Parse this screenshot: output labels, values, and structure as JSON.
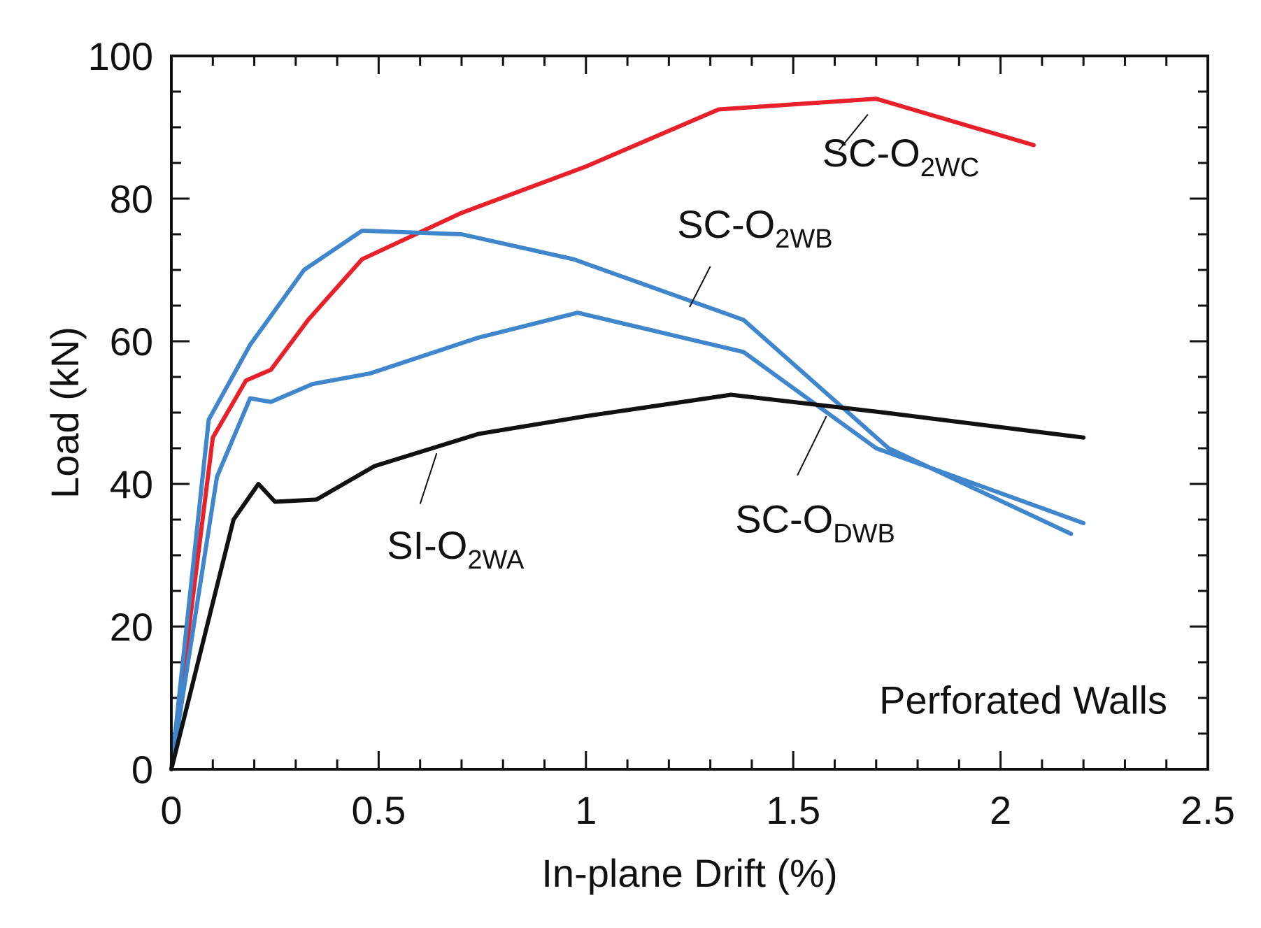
{
  "chart_data": {
    "type": "line",
    "xlabel": "In-plane Drift (%)",
    "ylabel": "Load (kN)",
    "xlim": [
      0,
      2.5
    ],
    "ylim": [
      0,
      100
    ],
    "x_ticks": [
      0,
      0.5,
      1,
      1.5,
      2,
      2.5
    ],
    "x_tick_labels": [
      "0",
      "0.5",
      "1",
      "1.5",
      "2",
      "2.5"
    ],
    "y_ticks": [
      0,
      20,
      40,
      60,
      80,
      100
    ],
    "y_tick_labels": [
      "0",
      "20",
      "40",
      "60",
      "80",
      "100"
    ],
    "x_minor_step": 0.1,
    "y_minor_step": 5,
    "grid": false,
    "annotation": "Perforated Walls",
    "series": [
      {
        "key": "sc-o2wc",
        "label_main": "SC-O",
        "label_sub": "2WC",
        "color": "#e8202a",
        "points": [
          [
            0,
            0
          ],
          [
            0.1,
            46.5
          ],
          [
            0.18,
            54.5
          ],
          [
            0.24,
            56
          ],
          [
            0.33,
            63
          ],
          [
            0.46,
            71.5
          ],
          [
            0.7,
            78
          ],
          [
            1.0,
            84.5
          ],
          [
            1.32,
            92.5
          ],
          [
            1.7,
            94
          ],
          [
            2.08,
            87.5
          ]
        ]
      },
      {
        "key": "sc-o2wb",
        "label_main": "SC-O",
        "label_sub": "2WB",
        "color": "#3f86cc",
        "points": [
          [
            0,
            0
          ],
          [
            0.09,
            49
          ],
          [
            0.19,
            59.5
          ],
          [
            0.32,
            70
          ],
          [
            0.46,
            75.5
          ],
          [
            0.7,
            75
          ],
          [
            0.97,
            71.5
          ],
          [
            1.38,
            63
          ],
          [
            1.73,
            45
          ],
          [
            2.17,
            33
          ]
        ]
      },
      {
        "key": "sc-odwb",
        "label_main": "SC-O",
        "label_sub": "DWB",
        "color": "#3f86cc",
        "points": [
          [
            0,
            0
          ],
          [
            0.11,
            41
          ],
          [
            0.19,
            52
          ],
          [
            0.24,
            51.5
          ],
          [
            0.34,
            54
          ],
          [
            0.48,
            55.5
          ],
          [
            0.74,
            60.5
          ],
          [
            0.98,
            64
          ],
          [
            1.38,
            58.5
          ],
          [
            1.7,
            45
          ],
          [
            2.2,
            34.5
          ]
        ]
      },
      {
        "key": "si-o2wa",
        "label_main": "SI-O",
        "label_sub": "2WA",
        "color": "#111111",
        "points": [
          [
            0,
            0
          ],
          [
            0.15,
            35
          ],
          [
            0.21,
            40
          ],
          [
            0.25,
            37.5
          ],
          [
            0.35,
            37.8
          ],
          [
            0.49,
            42.5
          ],
          [
            0.74,
            47
          ],
          [
            1.0,
            49.5
          ],
          [
            1.35,
            52.5
          ],
          [
            1.72,
            50
          ],
          [
            2.2,
            46.5
          ]
        ]
      }
    ]
  }
}
